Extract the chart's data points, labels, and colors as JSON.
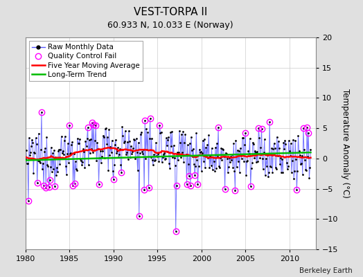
{
  "title": "VEST-TORPA II",
  "subtitle": "60.933 N, 10.033 E (Norway)",
  "attribution": "Berkeley Earth",
  "ylabel": "Temperature Anomaly (°C)",
  "xlim": [
    1980,
    2013
  ],
  "ylim": [
    -15,
    20
  ],
  "yticks": [
    -15,
    -10,
    -5,
    0,
    5,
    10,
    15,
    20
  ],
  "xticks": [
    1980,
    1985,
    1990,
    1995,
    2000,
    2005,
    2010
  ],
  "bg_color": "#e0e0e0",
  "plot_bg_color": "#ffffff",
  "raw_line_color": "#5555ff",
  "raw_marker_color": "#000000",
  "qc_fail_color": "#ff00ff",
  "moving_avg_color": "#ff0000",
  "trend_color": "#00bb00",
  "seed": 12345,
  "title_fontsize": 11,
  "subtitle_fontsize": 9,
  "tick_fontsize": 8,
  "legend_fontsize": 7.5
}
